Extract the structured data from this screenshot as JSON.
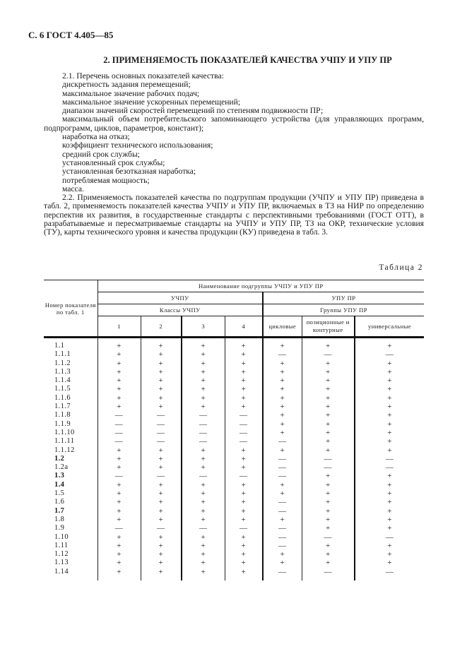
{
  "header": "С. 6 ГОСТ 4.405—85",
  "section_title": "2. ПРИМЕНЯЕМОСТЬ ПОКАЗАТЕЛЕЙ КАЧЕСТВА УЧПУ И УПУ ПР",
  "p21_intro": "2.1. Перечень основных показателей качества:",
  "p21_items": [
    "дискретность задания перемещений;",
    "максимальное значение рабочих подач;",
    "максимальное значение ускоренных перемещений;",
    "диапазон значений скоростей перемещений по степеням подвижности ПР;",
    "максимальный объем потребительского запоминающего устройства (для управляющих программ, подпрограмм, циклов, параметров, констант);",
    "наработка на отказ;",
    "коэффициент технического использования;",
    "средний срок службы;",
    "установленный срок службы;",
    "установленная безотказная наработка;",
    "потребляемая мощность;",
    "масса."
  ],
  "p22": "2.2. Применяемость показателей качества по подгруппам продукции (УЧПУ и УПУ ПР) приведена в табл. 2, применяемость показателей качества УЧПУ и УПУ ПР, включаемых в ТЗ на НИР по определению перспектив их развития, в государственные стандарты с перспективными требованиями (ГОСТ ОТТ), в разрабатываемые и пересматриваемые стандарты на УЧПУ и УПУ ПР, ТЗ на ОКР, технические условия (ТУ), карты технического уровня и качества продукции (КУ) приведена в табл. 3.",
  "table_caption": "Таблица 2",
  "table": {
    "col0_header": "Номер показателя по табл. 1",
    "group_header": "Наименование подгруппы УЧПУ и УПУ ПР",
    "uchpu": "УЧПУ",
    "upu": "УПУ ПР",
    "uchpu_classes": "Классы УЧПУ",
    "upu_groups": "Группы УПУ ПР",
    "columns": [
      "1",
      "2",
      "3",
      "4",
      "цикловые",
      "позиционные и контурные",
      "универсальные"
    ],
    "rows": [
      {
        "label": "1.1",
        "bold": false,
        "values": [
          "+",
          "+",
          "+",
          "+",
          "+",
          "+",
          "+"
        ]
      },
      {
        "label": "1.1.1",
        "bold": false,
        "values": [
          "+",
          "+",
          "+",
          "+",
          "—",
          "—",
          "—"
        ]
      },
      {
        "label": "1.1.2",
        "bold": false,
        "values": [
          "+",
          "+",
          "+",
          "+",
          "+",
          "+",
          "+"
        ]
      },
      {
        "label": "1.1.3",
        "bold": false,
        "values": [
          "+",
          "+",
          "+",
          "+",
          "+",
          "+",
          "+"
        ]
      },
      {
        "label": "1.1.4",
        "bold": false,
        "values": [
          "+",
          "+",
          "+",
          "+",
          "+",
          "+",
          "+"
        ]
      },
      {
        "label": "1.1.5",
        "bold": false,
        "values": [
          "+",
          "+",
          "+",
          "+",
          "+",
          "+",
          "+"
        ]
      },
      {
        "label": "1.1.6",
        "bold": false,
        "values": [
          "+",
          "+",
          "+",
          "+",
          "+",
          "+",
          "+"
        ]
      },
      {
        "label": "1.1.7",
        "bold": false,
        "values": [
          "+",
          "+",
          "+",
          "+",
          "+",
          "+",
          "+"
        ]
      },
      {
        "label": "1.1.8",
        "bold": false,
        "values": [
          "—",
          "—",
          "—",
          "—",
          "+",
          "+",
          "+"
        ]
      },
      {
        "label": "1.1.9",
        "bold": false,
        "values": [
          "—",
          "—",
          "—",
          "—",
          "+",
          "+",
          "+"
        ]
      },
      {
        "label": "1.1.10",
        "bold": false,
        "values": [
          "—",
          "—",
          "—",
          "—",
          "+",
          "+",
          "+"
        ]
      },
      {
        "label": "1.1.11",
        "bold": false,
        "values": [
          "—",
          "—",
          "—",
          "—",
          "—",
          "+",
          "+"
        ]
      },
      {
        "label": "1.1.12",
        "bold": false,
        "values": [
          "+",
          "+",
          "+",
          "+",
          "+",
          "+",
          "+"
        ]
      },
      {
        "label": "1.2",
        "bold": true,
        "values": [
          "+",
          "+",
          "+",
          "+",
          "—",
          "—",
          "—"
        ]
      },
      {
        "label": "1.2а",
        "bold": false,
        "values": [
          "+",
          "+",
          "+",
          "+",
          "—",
          "—",
          "—"
        ]
      },
      {
        "label": "1.3",
        "bold": true,
        "values": [
          "—",
          "—",
          "—",
          "—",
          "—",
          "+",
          "+"
        ]
      },
      {
        "label": "1.4",
        "bold": true,
        "values": [
          "+",
          "+",
          "+",
          "+",
          "+",
          "+",
          "+"
        ]
      },
      {
        "label": "1.5",
        "bold": false,
        "values": [
          "+",
          "+",
          "+",
          "+",
          "+",
          "+",
          "+"
        ]
      },
      {
        "label": "1.6",
        "bold": false,
        "values": [
          "+",
          "+",
          "+",
          "+",
          "—",
          "+",
          "+"
        ]
      },
      {
        "label": "1.7",
        "bold": true,
        "values": [
          "+",
          "+",
          "+",
          "+",
          "—",
          "+",
          "+"
        ]
      },
      {
        "label": "1.8",
        "bold": false,
        "values": [
          "+",
          "+",
          "+",
          "+",
          "+",
          "+",
          "+"
        ]
      },
      {
        "label": "1.9",
        "bold": false,
        "values": [
          "—",
          "—",
          "—",
          "—",
          "—",
          "+",
          "+"
        ]
      },
      {
        "label": "1.10",
        "bold": false,
        "values": [
          "+",
          "+",
          "+",
          "+",
          "—",
          "—",
          "—"
        ]
      },
      {
        "label": "1.11",
        "bold": false,
        "values": [
          "+",
          "+",
          "+",
          "+",
          "—",
          "+",
          "+"
        ]
      },
      {
        "label": "1.12",
        "bold": false,
        "values": [
          "+",
          "+",
          "+",
          "+",
          "+",
          "+",
          "+"
        ]
      },
      {
        "label": "1.13",
        "bold": false,
        "values": [
          "+",
          "+",
          "+",
          "+",
          "+",
          "+",
          "+"
        ]
      },
      {
        "label": "1.14",
        "bold": false,
        "values": [
          "+",
          "+",
          "+",
          "+",
          "—",
          "—",
          "—"
        ]
      }
    ]
  }
}
